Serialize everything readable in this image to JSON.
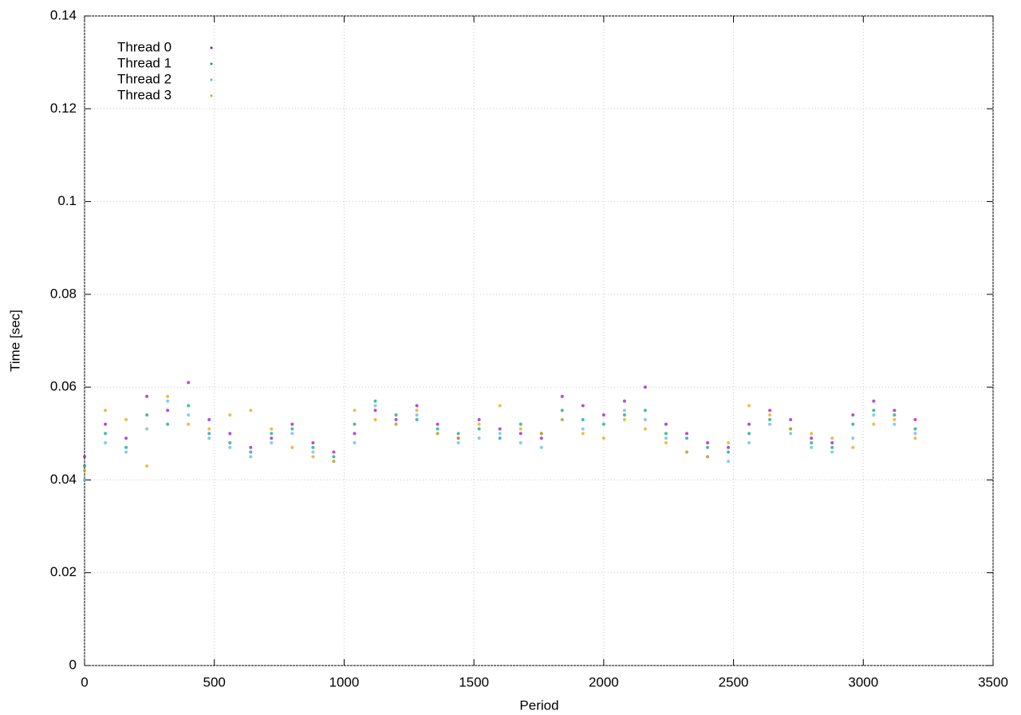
{
  "chart_data": {
    "type": "scatter",
    "xlabel": "Period",
    "ylabel": "Time [sec]",
    "x": [
      0,
      80,
      160,
      240,
      320,
      400,
      480,
      560,
      640,
      720,
      800,
      880,
      960,
      1040,
      1120,
      1200,
      1280,
      1360,
      1440,
      1520,
      1600,
      1680,
      1760,
      1840,
      1920,
      2000,
      2080,
      2160,
      2240,
      2320,
      2400,
      2480,
      2560,
      2640,
      2720,
      2800,
      2880,
      2960,
      3040,
      3120,
      3200
    ],
    "series": [
      {
        "name": "Thread 0",
        "color": "#9400d3",
        "values": [
          0.045,
          0.052,
          0.049,
          0.058,
          0.055,
          0.061,
          0.053,
          0.05,
          0.047,
          0.049,
          0.052,
          0.048,
          0.046,
          0.05,
          0.055,
          0.053,
          0.056,
          0.052,
          0.049,
          0.053,
          0.051,
          0.05,
          0.049,
          0.058,
          0.056,
          0.054,
          0.057,
          0.06,
          0.052,
          0.05,
          0.048,
          0.047,
          0.052,
          0.055,
          0.053,
          0.049,
          0.048,
          0.054,
          0.057,
          0.055,
          0.053
        ]
      },
      {
        "name": "Thread 1",
        "color": "#009e73",
        "values": [
          0.043,
          0.05,
          0.047,
          0.054,
          0.052,
          0.056,
          0.05,
          0.048,
          0.046,
          0.05,
          0.051,
          0.047,
          0.045,
          0.052,
          0.057,
          0.054,
          0.053,
          0.051,
          0.05,
          0.051,
          0.049,
          0.052,
          0.05,
          0.055,
          0.053,
          0.052,
          0.054,
          0.055,
          0.05,
          0.049,
          0.047,
          0.046,
          0.05,
          0.053,
          0.051,
          0.048,
          0.047,
          0.052,
          0.055,
          0.054,
          0.051
        ]
      },
      {
        "name": "Thread 2",
        "color": "#56b4e9",
        "values": [
          0.04,
          0.048,
          0.046,
          0.051,
          0.057,
          0.054,
          0.049,
          0.047,
          0.045,
          0.048,
          0.05,
          0.046,
          0.044,
          0.048,
          0.056,
          0.052,
          0.054,
          0.05,
          0.048,
          0.049,
          0.05,
          0.048,
          0.047,
          0.053,
          0.051,
          0.052,
          0.055,
          0.053,
          0.049,
          0.046,
          0.045,
          0.044,
          0.048,
          0.052,
          0.05,
          0.047,
          0.046,
          0.049,
          0.054,
          0.052,
          0.05
        ]
      },
      {
        "name": "Thread 3",
        "color": "#e69f00",
        "values": [
          0.042,
          0.055,
          0.053,
          0.043,
          0.058,
          0.052,
          0.051,
          0.054,
          0.055,
          0.051,
          0.047,
          0.045,
          0.044,
          0.055,
          0.053,
          0.052,
          0.055,
          0.05,
          0.049,
          0.052,
          0.056,
          0.051,
          0.05,
          0.053,
          0.05,
          0.049,
          0.053,
          0.051,
          0.048,
          0.046,
          0.045,
          0.048,
          0.056,
          0.054,
          0.051,
          0.05,
          0.049,
          0.047,
          0.052,
          0.053,
          0.049
        ]
      }
    ],
    "xlim": [
      0,
      3500
    ],
    "xticks": [
      0,
      500,
      1000,
      1500,
      2000,
      2500,
      3000,
      3500
    ],
    "ylim": [
      0,
      0.14
    ],
    "yticks": [
      0,
      0.02,
      0.04,
      0.06,
      0.08,
      0.1,
      0.12,
      0.14
    ],
    "grid": true,
    "legend": "top-left"
  }
}
